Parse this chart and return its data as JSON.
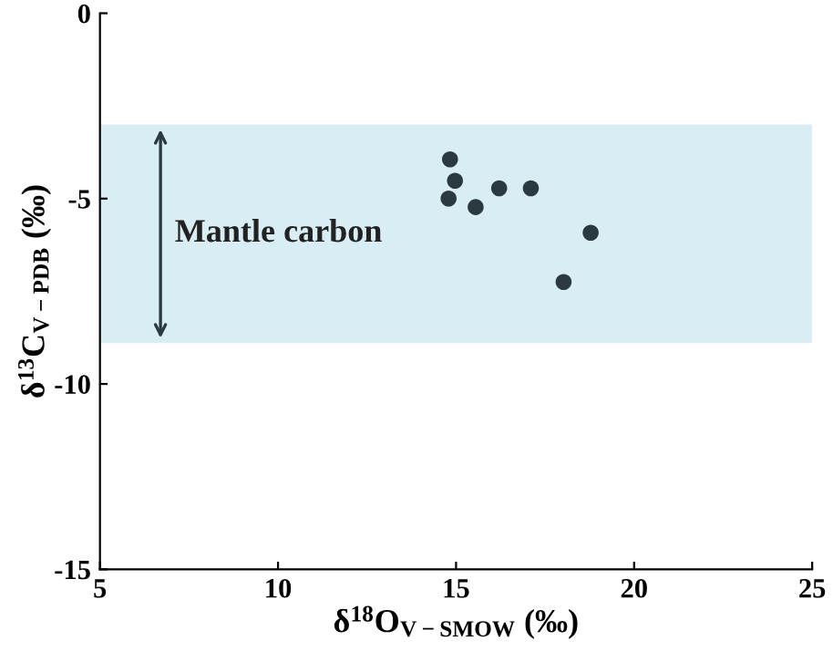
{
  "chart_data": {
    "type": "scatter",
    "xlabel": "δ$^{18}$O$_{V−SMOW}$ (‰)",
    "ylabel": "δ$^{13}$C$_{V−PDB}$ (‰)",
    "x": [
      14.83,
      14.97,
      14.79,
      15.55,
      16.21,
      17.1,
      18.78,
      18.02
    ],
    "series": [
      {
        "color": "#2b3a40",
        "values": [
          -3.94,
          -4.52,
          -5.0,
          -5.23,
          -4.72,
          -4.72,
          -5.92,
          -7.25
        ]
      }
    ],
    "marker": "circle",
    "xlim": [
      5,
      25
    ],
    "xticks": [
      5,
      10,
      15,
      20,
      25
    ],
    "ylim": [
      -15,
      0
    ],
    "yticks": [
      -15,
      -10,
      -5,
      0
    ],
    "bands": [
      {
        "axis": "y",
        "from": -3,
        "to": -8.9,
        "label": "Mantle carbon",
        "color": "#d9eef4"
      }
    ],
    "grid": false,
    "legend": false
  }
}
